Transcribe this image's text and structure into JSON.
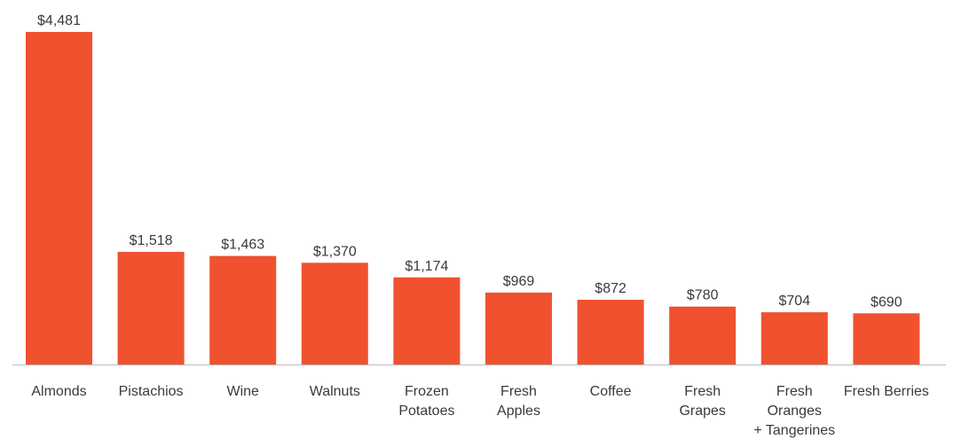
{
  "chart_data": {
    "type": "bar",
    "title": "",
    "xlabel": "",
    "ylabel": "",
    "ylim": [
      0,
      4481
    ],
    "grid": false,
    "bar_color": "#F0512F",
    "axis_color": "#bdbdbd",
    "categories": [
      [
        "Almonds"
      ],
      [
        "Pistachios"
      ],
      [
        "Wine"
      ],
      [
        "Walnuts"
      ],
      [
        "Frozen",
        "Potatoes"
      ],
      [
        "Fresh",
        "Apples"
      ],
      [
        "Coffee"
      ],
      [
        "Fresh",
        "Grapes"
      ],
      [
        "Fresh",
        "Oranges",
        "+ Tangerines"
      ],
      [
        "Fresh Berries"
      ]
    ],
    "values": [
      4481,
      1518,
      1463,
      1370,
      1174,
      969,
      872,
      780,
      704,
      690
    ],
    "value_labels": [
      "$4,481",
      "$1,518",
      "$1,463",
      "$1,370",
      "$1,174",
      "$969",
      "$872",
      "$780",
      "$704",
      "$690"
    ]
  }
}
